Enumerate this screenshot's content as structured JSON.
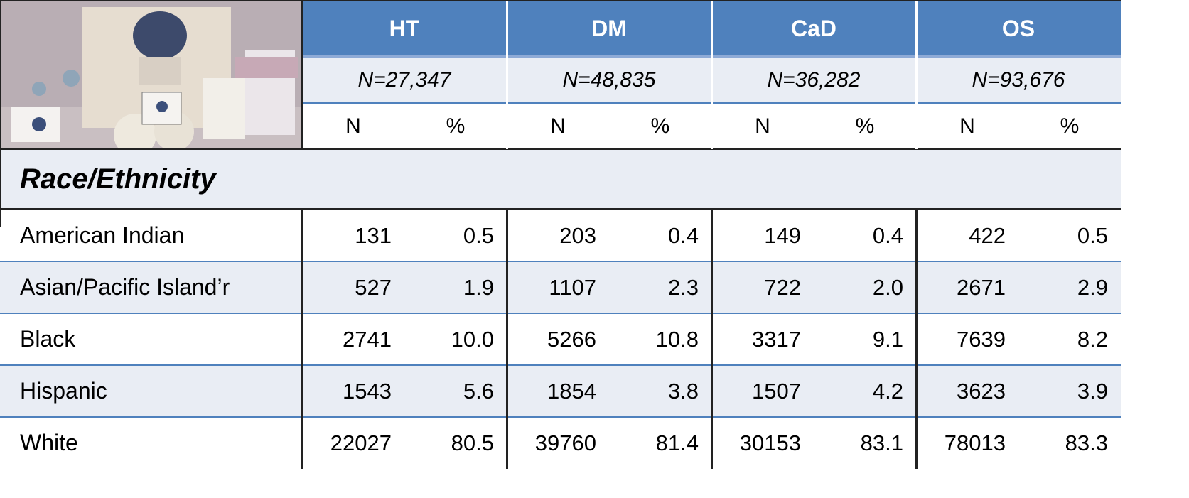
{
  "table": {
    "groups": [
      {
        "name": "HT",
        "n": "N=27,347"
      },
      {
        "name": "DM",
        "n": "N=48,835"
      },
      {
        "name": "CaD",
        "n": "N=36,282"
      },
      {
        "name": "OS",
        "n": "N=93,676"
      }
    ],
    "subheaders": [
      "N",
      "%"
    ],
    "section": "Race/Ethnicity",
    "rows": [
      {
        "label": "American Indian",
        "values": [
          "131",
          "0.5",
          "203",
          "0.4",
          "149",
          "0.4",
          "422",
          "0.5"
        ]
      },
      {
        "label": "Asian/Pacific Island’r",
        "values": [
          "527",
          "1.9",
          "1107",
          "2.3",
          "722",
          "2.0",
          "2671",
          "2.9"
        ]
      },
      {
        "label": "Black",
        "values": [
          "2741",
          "10.0",
          "5266",
          "10.8",
          "3317",
          "9.1",
          "7639",
          "8.2"
        ]
      },
      {
        "label": "Hispanic",
        "values": [
          "1543",
          "5.6",
          "1854",
          "3.8",
          "1507",
          "4.2",
          "3623",
          "3.9"
        ]
      },
      {
        "label": "White",
        "values": [
          "22027",
          "80.5",
          "39760",
          "81.4",
          "30153",
          "83.1",
          "78013",
          "83.3"
        ]
      }
    ]
  }
}
